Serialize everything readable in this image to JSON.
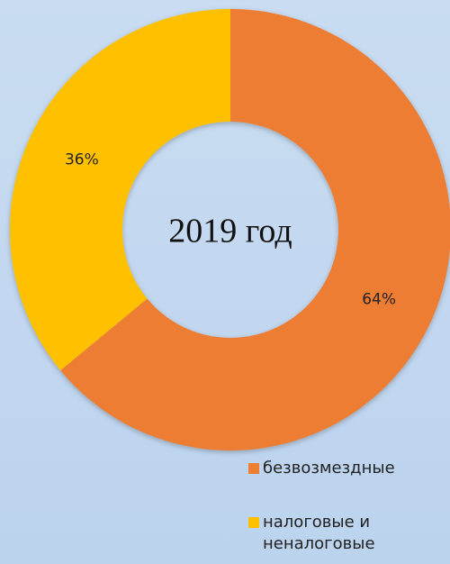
{
  "chart_data": {
    "type": "donut",
    "title": "2019 год",
    "categories": [
      "безвозмездные",
      "налоговые и неналоговые"
    ],
    "values": [
      64,
      36
    ],
    "value_labels": [
      "64%",
      "36%"
    ],
    "colors": [
      "#ed7d31",
      "#ffc000"
    ],
    "legend": "bottom-right"
  }
}
